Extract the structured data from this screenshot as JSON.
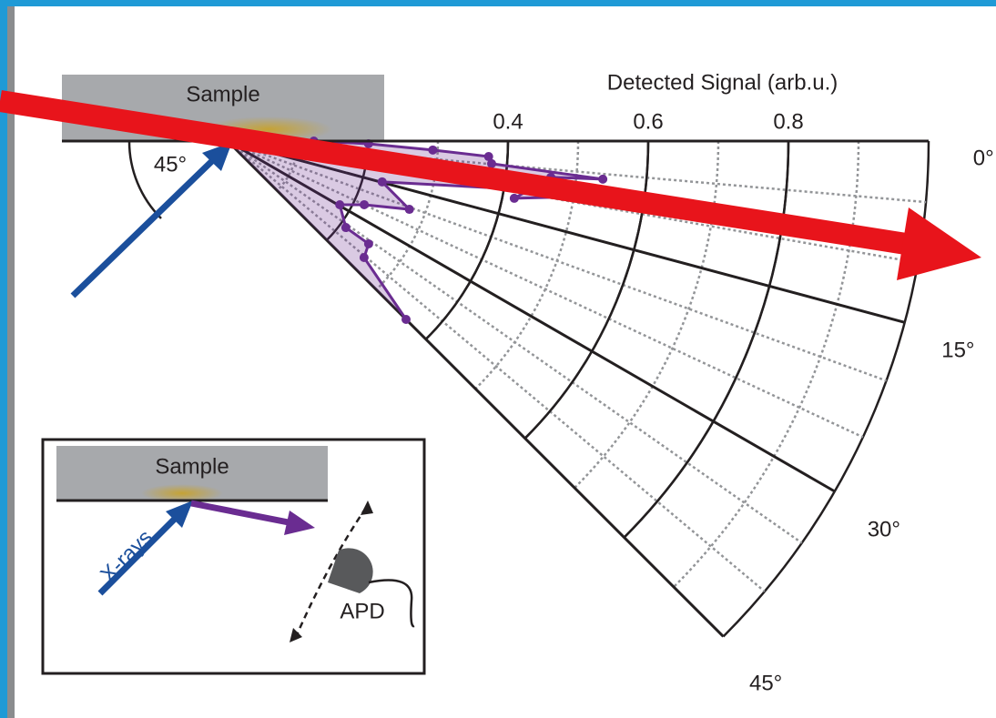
{
  "chart_data": {
    "type": "polar",
    "radial_axis_label": "Detected Signal (arb.u.)",
    "rlim": [
      0,
      1
    ],
    "rticks": [
      0.4,
      0.6,
      0.8
    ],
    "thetalim": [
      0,
      45
    ],
    "thetaticks": [
      {
        "value": 0,
        "label": "0°"
      },
      {
        "value": 15,
        "label": "15°"
      },
      {
        "value": 30,
        "label": "30°"
      },
      {
        "value": 45,
        "label": "45°"
      }
    ],
    "series": [
      {
        "color": "#6a2c91",
        "theta": [
          0,
          0,
          1.1,
          2.5,
          3.4,
          4.9,
          5.8,
          6.4,
          11.3,
          7.6,
          14.8,
          20.6,
          25.0,
          29.6,
          36.2,
          36.1,
          40.5,
          45
        ],
        "values": [
          0.094,
          0.123,
          0.201,
          0.293,
          0.373,
          0.378,
          0.538,
          0.464,
          0.417,
          0.586,
          0.228,
          0.277,
          0.215,
          0.184,
          0.209,
          0.249,
          0.256,
          0.36
        ]
      }
    ],
    "annotations": {
      "sample": "Sample",
      "incidence_angle": "45°",
      "inset": {
        "sample": "Sample",
        "beam": "X-rays",
        "detector": "APD"
      }
    }
  }
}
